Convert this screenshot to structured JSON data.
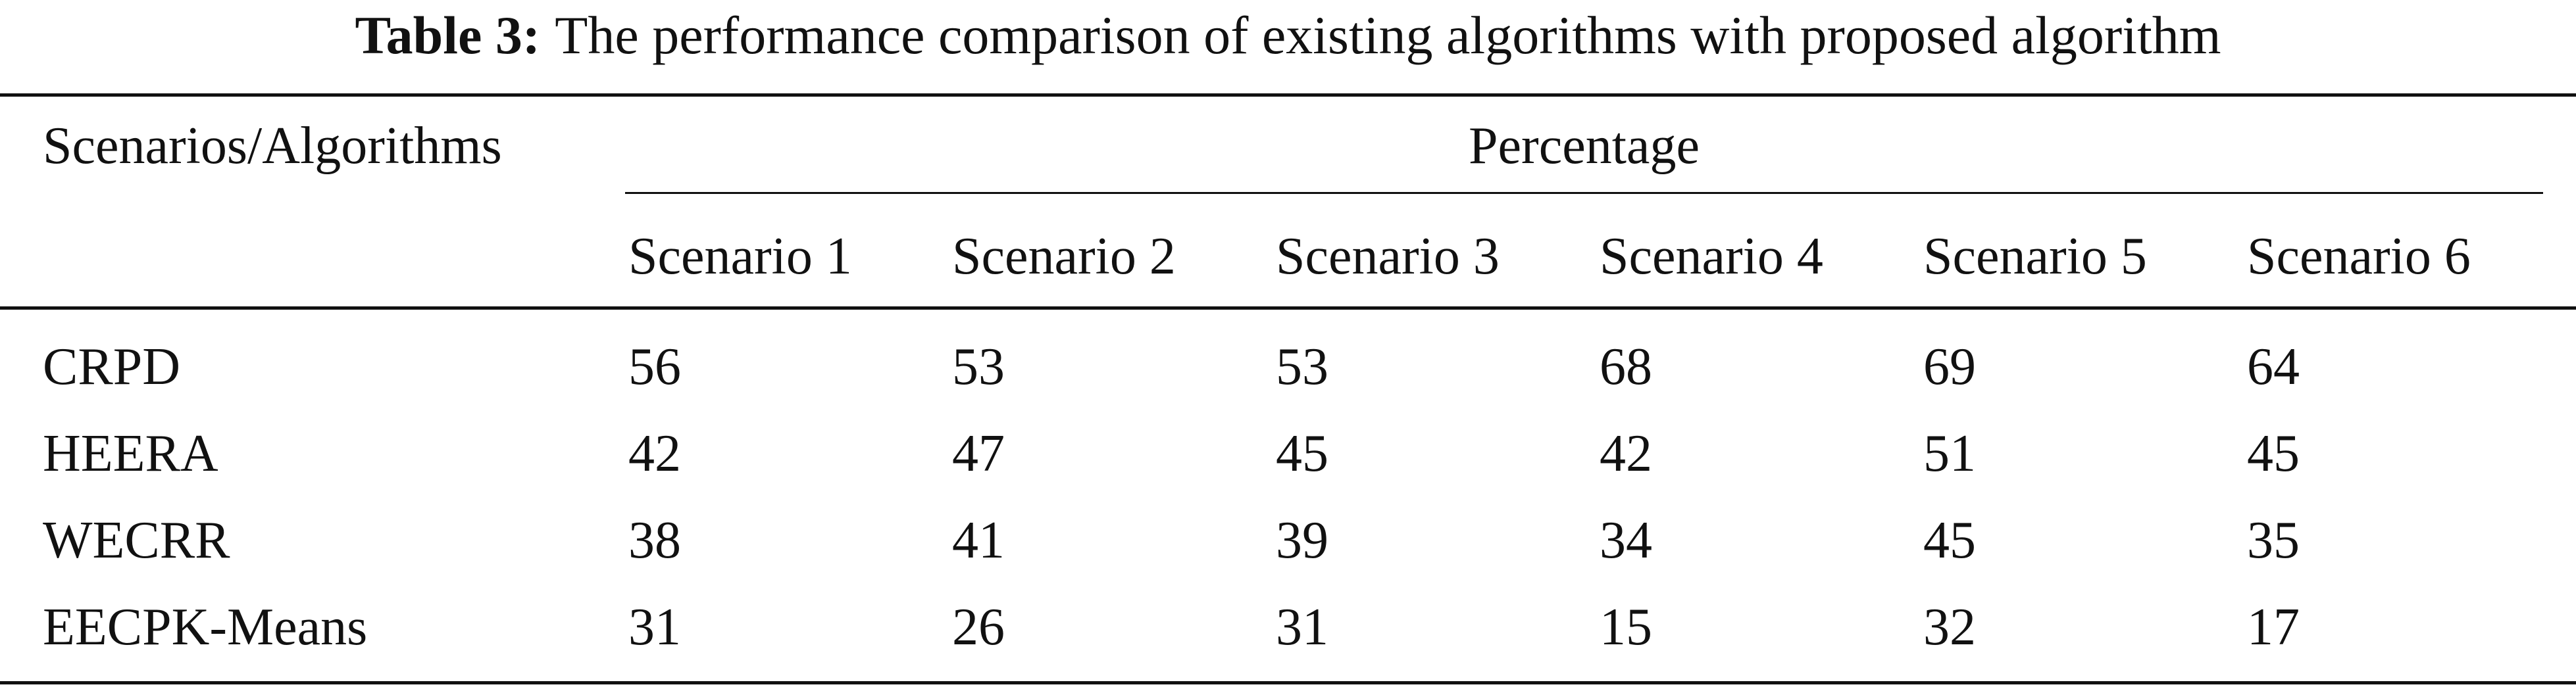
{
  "caption": {
    "label": "Table 3:",
    "text": "The performance comparison of existing algorithms with proposed algorithm"
  },
  "table": {
    "row_header_label": "Scenarios/Algorithms",
    "group_header": "Percentage",
    "columns": [
      "Scenario 1",
      "Scenario 2",
      "Scenario 3",
      "Scenario 4",
      "Scenario 5",
      "Scenario 6"
    ],
    "rows": [
      {
        "name": "CRPD",
        "values": [
          "56",
          "53",
          "53",
          "68",
          "69",
          "64"
        ]
      },
      {
        "name": "HEERA",
        "values": [
          "42",
          "47",
          "45",
          "42",
          "51",
          "45"
        ]
      },
      {
        "name": "WECRR",
        "values": [
          "38",
          "41",
          "39",
          "34",
          "45",
          "35"
        ]
      },
      {
        "name": "EECPK-Means",
        "values": [
          "31",
          "26",
          "31",
          "15",
          "32",
          "17"
        ]
      }
    ]
  }
}
